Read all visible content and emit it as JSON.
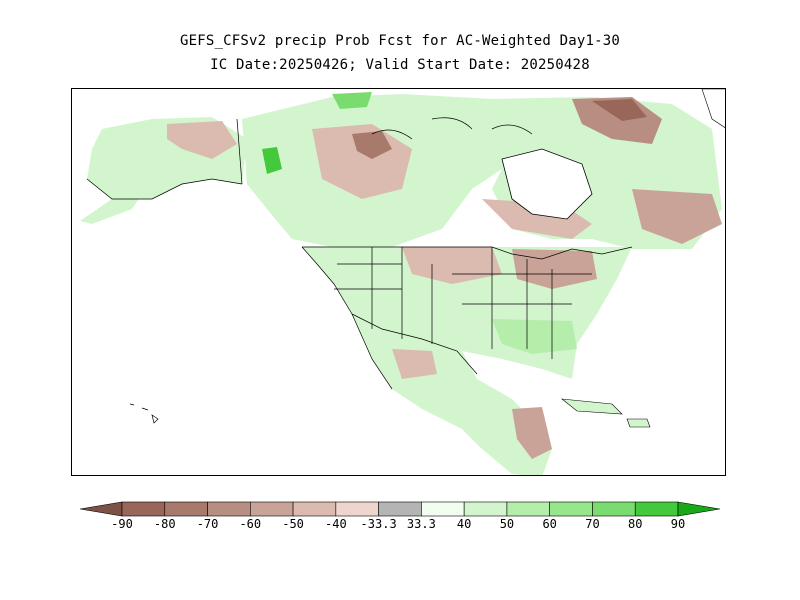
{
  "title": {
    "line1": "GEFS_CFSv2 precip Prob Fcst for AC-Weighted Day1-30",
    "line2": "IC Date:20250426; Valid Start Date: 20250428"
  },
  "colorbar": {
    "labels": [
      "-90",
      "-80",
      "-70",
      "-60",
      "-50",
      "-40",
      "-33.3",
      "33.3",
      "40",
      "50",
      "60",
      "70",
      "80",
      "90"
    ],
    "colors": {
      "below_90_plus": "#7d5246",
      "below_80_90": "#98675a",
      "below_70_80": "#a87a6c",
      "below_60_70": "#b88e82",
      "below_50_60": "#c9a398",
      "below_40_50": "#dbbab0",
      "below_33_40": "#eed6ce",
      "near_normal": "#b4b4b4",
      "above_33_40": "#f2fff0",
      "above_40_50": "#d2f5cd",
      "above_50_60": "#b4eeaa",
      "above_60_70": "#96e68c",
      "above_70_80": "#7adc6e",
      "above_80_90": "#44c83c",
      "above_90_plus": "#18a818"
    }
  },
  "map": {
    "region": "North America",
    "background": "#ffffff",
    "coastline_color": "#000000"
  }
}
